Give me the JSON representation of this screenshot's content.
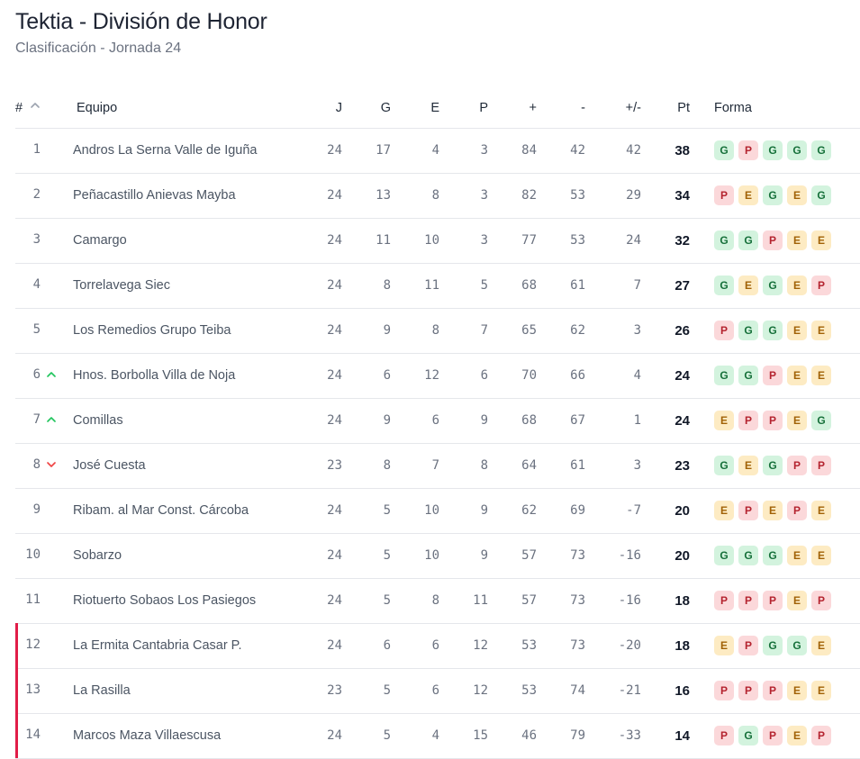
{
  "header": {
    "title": "Tektia - División de Honor",
    "subtitle": "Clasificación - Jornada 24"
  },
  "columns": {
    "pos": "#",
    "team": "Equipo",
    "j": "J",
    "g": "G",
    "e": "E",
    "p": "P",
    "gf": "+",
    "ga": "-",
    "diff": "+/-",
    "pts": "Pt",
    "form": "Forma"
  },
  "colors": {
    "win_bg": "#d3f3de",
    "loss_bg": "#fbd8da",
    "draw_bg": "#fdebc3",
    "relegation": "#e11d48",
    "trend_up": "#22c55e",
    "trend_down": "#ef4444"
  },
  "rows": [
    {
      "pos": "1",
      "team": "Andros La Serna Valle de Iguña",
      "j": "24",
      "g": "17",
      "e": "4",
      "p": "3",
      "gf": "84",
      "ga": "42",
      "diff": "42",
      "pts": "38",
      "trend": "",
      "form": [
        "G",
        "P",
        "G",
        "G",
        "G"
      ],
      "zone": ""
    },
    {
      "pos": "2",
      "team": "Peñacastillo Anievas Mayba",
      "j": "24",
      "g": "13",
      "e": "8",
      "p": "3",
      "gf": "82",
      "ga": "53",
      "diff": "29",
      "pts": "34",
      "trend": "",
      "form": [
        "P",
        "E",
        "G",
        "E",
        "G"
      ],
      "zone": ""
    },
    {
      "pos": "3",
      "team": "Camargo",
      "j": "24",
      "g": "11",
      "e": "10",
      "p": "3",
      "gf": "77",
      "ga": "53",
      "diff": "24",
      "pts": "32",
      "trend": "",
      "form": [
        "G",
        "G",
        "P",
        "E",
        "E"
      ],
      "zone": ""
    },
    {
      "pos": "4",
      "team": "Torrelavega Siec",
      "j": "24",
      "g": "8",
      "e": "11",
      "p": "5",
      "gf": "68",
      "ga": "61",
      "diff": "7",
      "pts": "27",
      "trend": "",
      "form": [
        "G",
        "E",
        "G",
        "E",
        "P"
      ],
      "zone": ""
    },
    {
      "pos": "5",
      "team": "Los Remedios Grupo Teiba",
      "j": "24",
      "g": "9",
      "e": "8",
      "p": "7",
      "gf": "65",
      "ga": "62",
      "diff": "3",
      "pts": "26",
      "trend": "",
      "form": [
        "P",
        "G",
        "G",
        "E",
        "E"
      ],
      "zone": ""
    },
    {
      "pos": "6",
      "team": "Hnos. Borbolla Villa de Noja",
      "j": "24",
      "g": "6",
      "e": "12",
      "p": "6",
      "gf": "70",
      "ga": "66",
      "diff": "4",
      "pts": "24",
      "trend": "up",
      "form": [
        "G",
        "G",
        "P",
        "E",
        "E"
      ],
      "zone": ""
    },
    {
      "pos": "7",
      "team": "Comillas",
      "j": "24",
      "g": "9",
      "e": "6",
      "p": "9",
      "gf": "68",
      "ga": "67",
      "diff": "1",
      "pts": "24",
      "trend": "up",
      "form": [
        "E",
        "P",
        "P",
        "E",
        "G"
      ],
      "zone": ""
    },
    {
      "pos": "8",
      "team": "José Cuesta",
      "j": "23",
      "g": "8",
      "e": "7",
      "p": "8",
      "gf": "64",
      "ga": "61",
      "diff": "3",
      "pts": "23",
      "trend": "down",
      "form": [
        "G",
        "E",
        "G",
        "P",
        "P"
      ],
      "zone": ""
    },
    {
      "pos": "9",
      "team": "Ribam. al Mar Const. Cárcoba",
      "j": "24",
      "g": "5",
      "e": "10",
      "p": "9",
      "gf": "62",
      "ga": "69",
      "diff": "-7",
      "pts": "20",
      "trend": "",
      "form": [
        "E",
        "P",
        "E",
        "P",
        "E"
      ],
      "zone": ""
    },
    {
      "pos": "10",
      "team": "Sobarzo",
      "j": "24",
      "g": "5",
      "e": "10",
      "p": "9",
      "gf": "57",
      "ga": "73",
      "diff": "-16",
      "pts": "20",
      "trend": "",
      "form": [
        "G",
        "G",
        "G",
        "E",
        "E"
      ],
      "zone": ""
    },
    {
      "pos": "11",
      "team": "Riotuerto Sobaos Los Pasiegos",
      "j": "24",
      "g": "5",
      "e": "8",
      "p": "11",
      "gf": "57",
      "ga": "73",
      "diff": "-16",
      "pts": "18",
      "trend": "",
      "form": [
        "P",
        "P",
        "P",
        "E",
        "P"
      ],
      "zone": ""
    },
    {
      "pos": "12",
      "team": "La Ermita Cantabria Casar P.",
      "j": "24",
      "g": "6",
      "e": "6",
      "p": "12",
      "gf": "53",
      "ga": "73",
      "diff": "-20",
      "pts": "18",
      "trend": "",
      "form": [
        "E",
        "P",
        "G",
        "G",
        "E"
      ],
      "zone": "relegation"
    },
    {
      "pos": "13",
      "team": "La Rasilla",
      "j": "23",
      "g": "5",
      "e": "6",
      "p": "12",
      "gf": "53",
      "ga": "74",
      "diff": "-21",
      "pts": "16",
      "trend": "",
      "form": [
        "P",
        "P",
        "P",
        "E",
        "E"
      ],
      "zone": "relegation"
    },
    {
      "pos": "14",
      "team": "Marcos Maza Villaescusa",
      "j": "24",
      "g": "5",
      "e": "4",
      "p": "15",
      "gf": "46",
      "ga": "79",
      "diff": "-33",
      "pts": "14",
      "trend": "",
      "form": [
        "P",
        "G",
        "P",
        "E",
        "P"
      ],
      "zone": "relegation"
    }
  ]
}
